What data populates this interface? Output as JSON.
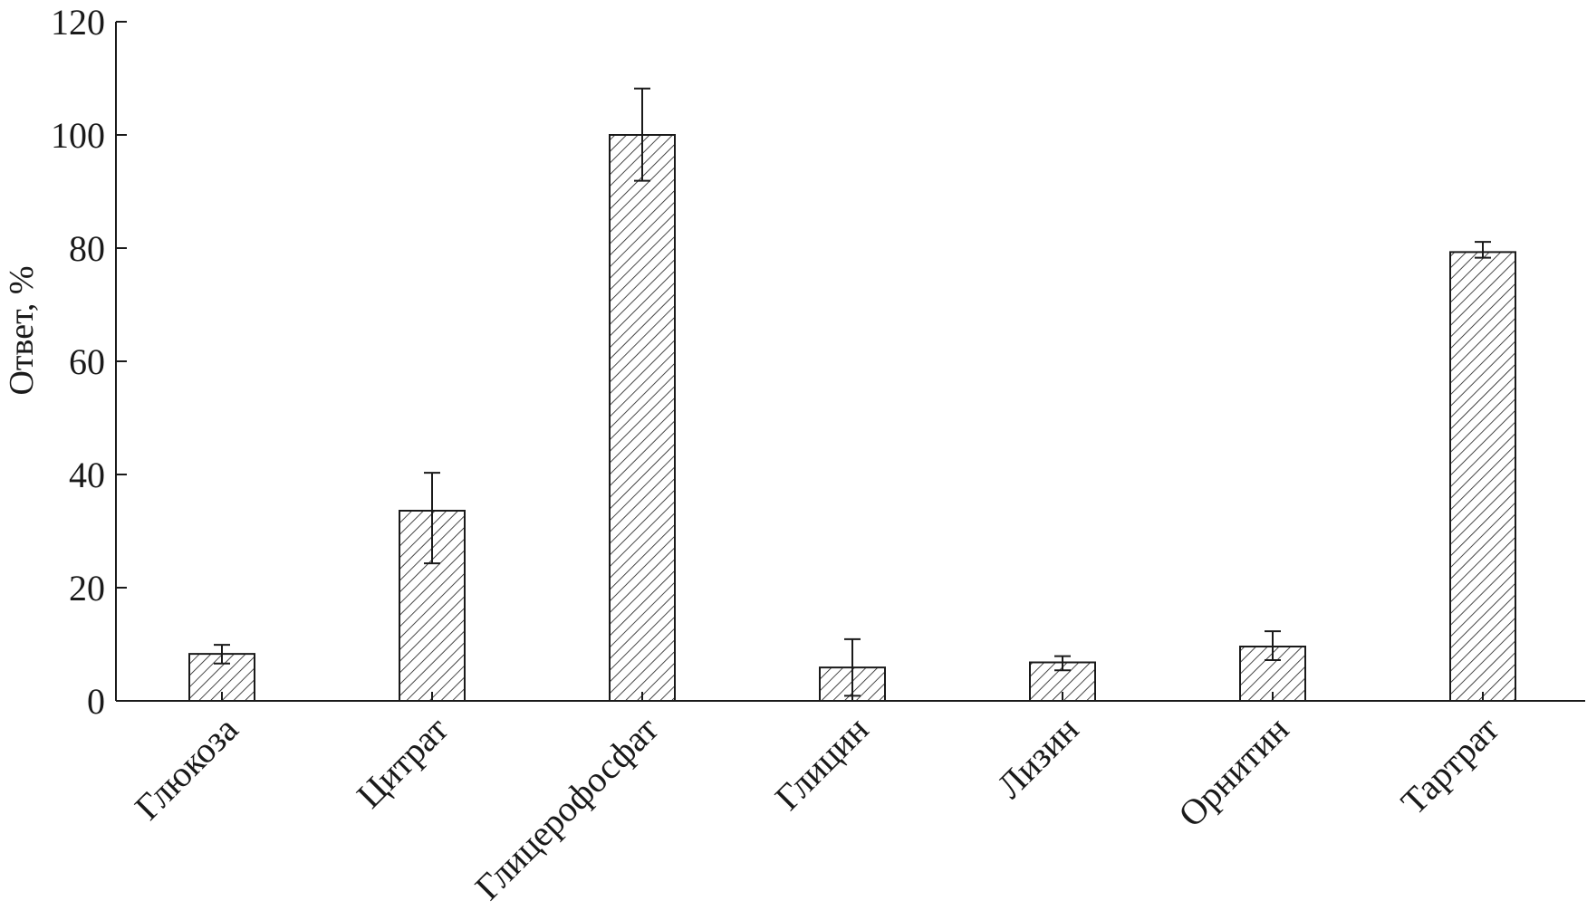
{
  "chart_data": {
    "type": "bar",
    "title": "",
    "xlabel": "",
    "ylabel": "Ответ, %",
    "ylim": [
      0,
      120
    ],
    "yticks": [
      0,
      20,
      40,
      60,
      80,
      100,
      120
    ],
    "grid": false,
    "legend": "none",
    "bar_fill": "hatched-diagonal",
    "bar_color": "#1a1a1a",
    "categories": [
      "Глюкоза",
      "Цитрат",
      "Глицерофосфат",
      "Глицин",
      "Лизин",
      "Орнитин",
      "Тартрат"
    ],
    "values": [
      8.3,
      33.6,
      100,
      5.9,
      6.8,
      9.6,
      79.3
    ],
    "error_low": [
      6.6,
      24.3,
      91.9,
      0.9,
      5.4,
      7.2,
      78.3
    ],
    "error_high": [
      9.9,
      40.3,
      108.2,
      10.9,
      7.9,
      12.3,
      81.1
    ]
  }
}
